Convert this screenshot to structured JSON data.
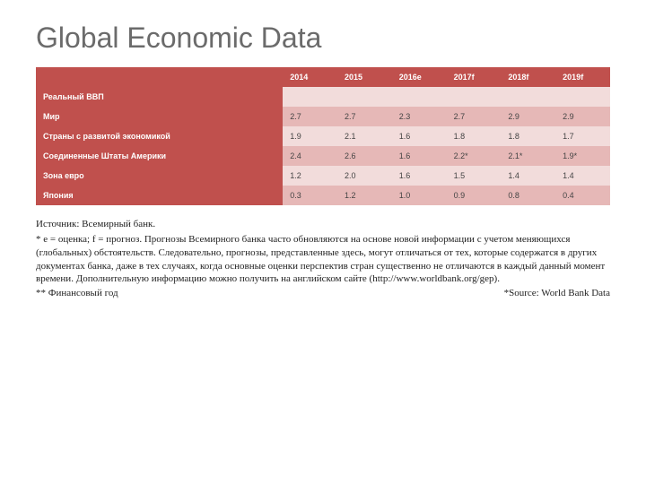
{
  "title": "Global Economic Data",
  "table": {
    "type": "table",
    "header_bg": "#c0504d",
    "header_fg": "#ffffff",
    "row_label_bg": "#c0504d",
    "row_label_fg": "#ffffff",
    "cell_bg_alt1": "#f2dcdb",
    "cell_bg_alt2": "#e6b8b7",
    "cell_fg": "#444444",
    "columns": [
      "",
      "2014",
      "2015",
      "2016e",
      "2017f",
      "2018f",
      "2019f"
    ],
    "rows": [
      {
        "label": "Реальный ВВП",
        "values": [
          "",
          "",
          "",
          "",
          "",
          ""
        ]
      },
      {
        "label": "Мир",
        "values": [
          "2.7",
          "2.7",
          "2.3",
          "2.7",
          "2.9",
          "2.9"
        ]
      },
      {
        "label": "Страны с развитой экономикой",
        "values": [
          "1.9",
          "2.1",
          "1.6",
          "1.8",
          "1.8",
          "1.7"
        ]
      },
      {
        "label": "Соединенные Штаты Америки",
        "values": [
          "2.4",
          "2.6",
          "1.6",
          "2.2*",
          "2.1*",
          "1.9*"
        ]
      },
      {
        "label": "Зона евро",
        "values": [
          "1.2",
          "2.0",
          "1.6",
          "1.5",
          "1.4",
          "1.4"
        ]
      },
      {
        "label": "Япония",
        "values": [
          "0.3",
          "1.2",
          "1.0",
          "0.9",
          "0.8",
          "0.4"
        ]
      }
    ]
  },
  "footnotes": {
    "source_line": "Источник: Всемирный банк.",
    "note_main": "* e = оценка; f = прогноз. Прогнозы Всемирного банка часто обновляются на основе новой информации с учетом меняющихся (глобальных) обстоятельств. Следовательно, прогнозы, представленные здесь, могут отличаться от тех, которые содержатся в других документах банка, даже в тех случаях, когда основные оценки перспектив стран существенно не отличаются в каждый данный момент времени.  Дополнительную информацию можно получить на английском сайте (http://www.worldbank.org/gep).",
    "fiscal_year": "** Финансовый год",
    "source_en": "*Source: World Bank Data"
  }
}
